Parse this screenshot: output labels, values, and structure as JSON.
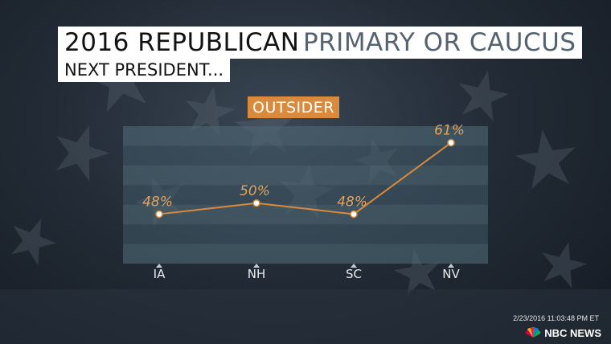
{
  "header": {
    "title_part1": "2016 REPUBLICAN",
    "title_part2": "PRIMARY OR CAUCUS",
    "subtitle": "NEXT PRESIDENT...",
    "tag": "OUTSIDER"
  },
  "colors": {
    "accent": "#d98a3d",
    "title_accent": "#55626f",
    "label": "#e0a461"
  },
  "chart_data": {
    "type": "line",
    "categories": [
      "IA",
      "NH",
      "SC",
      "NV"
    ],
    "series": [
      {
        "name": "OUTSIDER",
        "values": [
          48,
          50,
          48,
          61
        ],
        "labels": [
          "48%",
          "50%",
          "48%",
          "61%"
        ]
      }
    ],
    "title": "OUTSIDER",
    "xlabel": "",
    "ylabel": "",
    "ylim": [
      39,
      64
    ],
    "grid": true,
    "legend": "none"
  },
  "footer": {
    "timestamp": "2/23/2016 11:03:48 PM ET",
    "brand": "NBC NEWS",
    "logo_icon": "nbc-peacock-icon"
  }
}
